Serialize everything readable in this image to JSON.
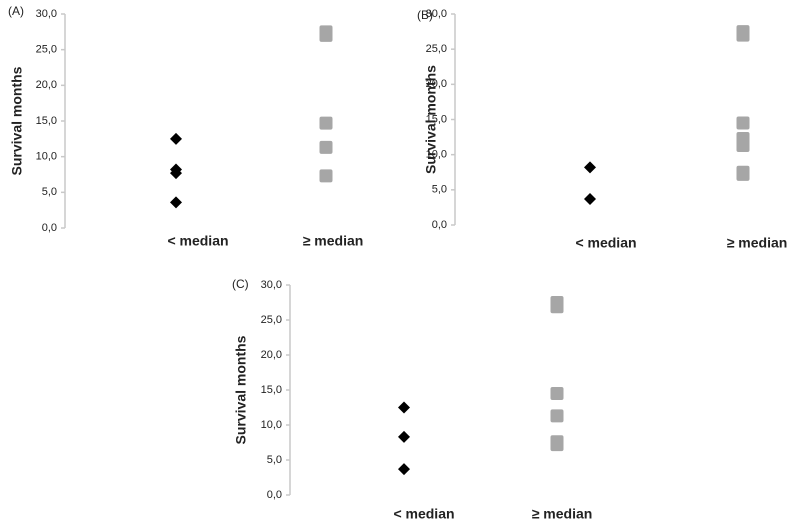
{
  "chart_data": [
    {
      "type": "strip",
      "panel_label": "(A)",
      "y_label": "Survival months",
      "ylim": [
        0,
        30
      ],
      "yticks": [
        {
          "value": 0,
          "label": "0,0"
        },
        {
          "value": 5,
          "label": "5,0"
        },
        {
          "value": 10,
          "label": "10,0"
        },
        {
          "value": 15,
          "label": "15,0"
        },
        {
          "value": 20,
          "label": "20,0"
        },
        {
          "value": 25,
          "label": "25,0"
        },
        {
          "value": 30,
          "label": "30,0"
        }
      ],
      "groups": [
        {
          "label": "< median",
          "color": "#000000",
          "marker": "diamond",
          "values": [
            12.5,
            8.2,
            7.7,
            3.6
          ]
        },
        {
          "label": "≥ median",
          "color": "#a6a6a6",
          "marker": "square",
          "values": [
            27.5,
            27.0,
            14.7,
            11.3,
            7.3
          ]
        }
      ]
    },
    {
      "type": "strip",
      "panel_label": "(B)",
      "y_label": "Survival months",
      "ylim": [
        0,
        30
      ],
      "yticks": [
        {
          "value": 0,
          "label": "0,0"
        },
        {
          "value": 5,
          "label": "5,0"
        },
        {
          "value": 10,
          "label": "10,0"
        },
        {
          "value": 15,
          "label": "15,0"
        },
        {
          "value": 20,
          "label": "20,0"
        },
        {
          "value": 25,
          "label": "25,0"
        },
        {
          "value": 30,
          "label": "30,0"
        }
      ],
      "groups": [
        {
          "label": "< median",
          "color": "#000000",
          "marker": "diamond",
          "values": [
            8.2,
            3.7
          ]
        },
        {
          "label": "≥ median",
          "color": "#a6a6a6",
          "marker": "square",
          "values": [
            27.5,
            27.0,
            14.5,
            12.3,
            11.3,
            7.5,
            7.2
          ]
        }
      ]
    },
    {
      "type": "strip",
      "panel_label": "(C)",
      "y_label": "Survival months",
      "ylim": [
        0,
        30
      ],
      "yticks": [
        {
          "value": 0,
          "label": "0,0"
        },
        {
          "value": 5,
          "label": "5,0"
        },
        {
          "value": 10,
          "label": "10,0"
        },
        {
          "value": 15,
          "label": "15,0"
        },
        {
          "value": 20,
          "label": "20,0"
        },
        {
          "value": 25,
          "label": "25,0"
        },
        {
          "value": 30,
          "label": "30,0"
        }
      ],
      "groups": [
        {
          "label": "< median",
          "color": "#000000",
          "marker": "diamond",
          "values": [
            12.5,
            8.3,
            3.7
          ]
        },
        {
          "label": "≥ median",
          "color": "#a6a6a6",
          "marker": "square",
          "values": [
            27.5,
            26.9,
            14.5,
            11.3,
            7.6,
            7.2
          ]
        }
      ]
    }
  ]
}
